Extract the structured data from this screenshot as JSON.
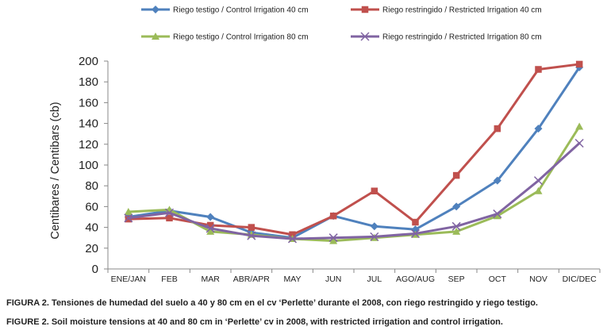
{
  "chart_data": {
    "type": "line",
    "title": "",
    "xlabel": "",
    "ylabel": "Centibares / Centibars (cb)",
    "ylim": [
      0,
      200
    ],
    "ytick_step": 20,
    "yticks": [
      "0",
      "20",
      "40",
      "60",
      "80",
      "100",
      "120",
      "140",
      "160",
      "180",
      "200"
    ],
    "categories": [
      "ENE/JAN",
      "FEB",
      "MAR",
      "ABR/APR",
      "MAY",
      "JUN",
      "JUL",
      "AGO/AUG",
      "SEP",
      "OCT",
      "NOV",
      "DIC/DEC"
    ],
    "legend_position": "top",
    "series": [
      {
        "name": "Riego testigo / Control Irrigation 40 cm",
        "color": "#4f81bd",
        "marker": "diamond",
        "values": [
          50,
          56,
          50,
          35,
          30,
          51,
          41,
          38,
          60,
          85,
          135,
          194
        ]
      },
      {
        "name": "Riego restringido / Restricted Irrigation 40 cm",
        "color": "#c0504d",
        "marker": "square",
        "values": [
          48,
          49,
          42,
          40,
          33,
          51,
          75,
          45,
          90,
          135,
          192,
          197
        ]
      },
      {
        "name": "Riego testigo / Control Irrigation 80 cm",
        "color": "#9bbb59",
        "marker": "triangle",
        "values": [
          55,
          57,
          36,
          33,
          29,
          27,
          30,
          33,
          36,
          51,
          75,
          137
        ]
      },
      {
        "name": "Riego restringido / Restricted Irrigation 80 cm",
        "color": "#8064a2",
        "marker": "x",
        "values": [
          49,
          54,
          39,
          32,
          29,
          30,
          31,
          34,
          41,
          53,
          85,
          121
        ]
      }
    ]
  },
  "captions": {
    "spanish": "FIGURA 2. Tensiones de humedad del suelo a 40 y 80 cm en el cv ‘Perlette’ durante el 2008, con riego restringido y riego testigo.",
    "english": "FIGURE 2. Soil moisture tensions at 40 and 80 cm in ‘Perlette’ cv in 2008, with restricted irrigation and control irrigation."
  }
}
